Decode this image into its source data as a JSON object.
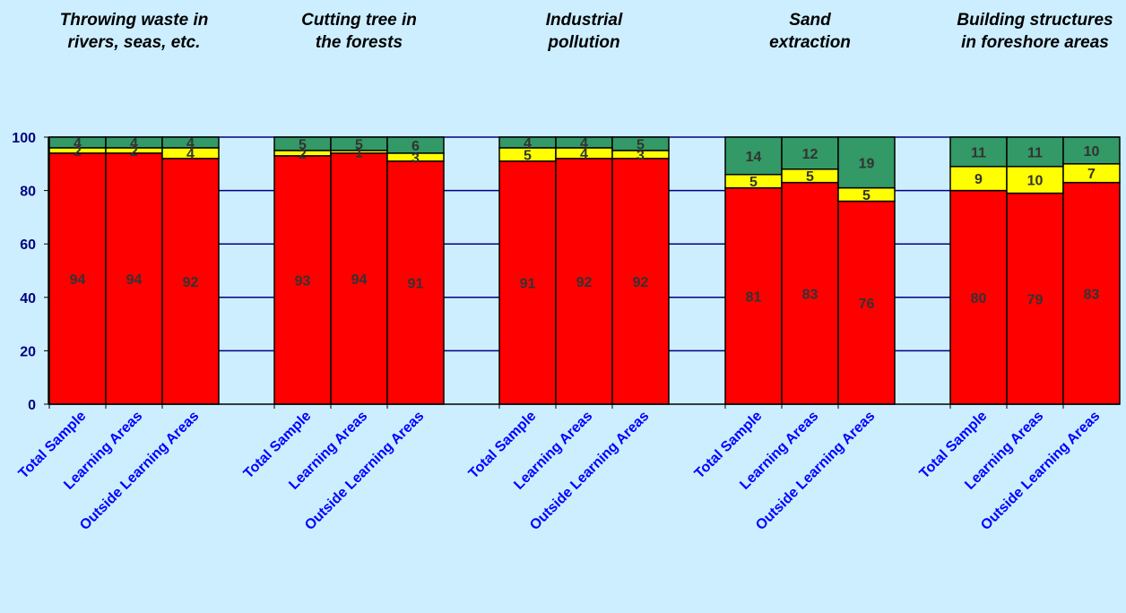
{
  "chart_data": {
    "type": "bar",
    "stacked": true,
    "ylim": [
      0,
      100
    ],
    "yticks": [
      0,
      20,
      40,
      60,
      80,
      100
    ],
    "grid": true,
    "categories": [
      "Total Sample",
      "Learning Areas",
      "Outside Learning Areas"
    ],
    "colors": {
      "red": "#ff0000",
      "yellow": "#ffff00",
      "green": "#339966",
      "background": "#cceeff",
      "grid": "#000080"
    },
    "groups": [
      {
        "title": [
          "Throwing waste in",
          "rivers, seas, etc."
        ],
        "bars": [
          {
            "segments": [
              94,
              2,
              4
            ]
          },
          {
            "segments": [
              94,
              2,
              4
            ]
          },
          {
            "segments": [
              92,
              4,
              4
            ]
          }
        ]
      },
      {
        "title": [
          "Cutting tree in",
          "the forests"
        ],
        "bars": [
          {
            "segments": [
              93,
              2,
              5
            ]
          },
          {
            "segments": [
              94,
              1,
              5
            ]
          },
          {
            "segments": [
              91,
              3,
              6
            ]
          }
        ]
      },
      {
        "title": [
          "Industrial",
          "pollution"
        ],
        "bars": [
          {
            "segments": [
              91,
              5,
              4
            ]
          },
          {
            "segments": [
              92,
              4,
              4
            ]
          },
          {
            "segments": [
              92,
              3,
              5
            ]
          }
        ]
      },
      {
        "title": [
          "Sand",
          "extraction"
        ],
        "bars": [
          {
            "segments": [
              81,
              5,
              14
            ]
          },
          {
            "segments": [
              83,
              5,
              12
            ]
          },
          {
            "segments": [
              76,
              5,
              19
            ]
          }
        ]
      },
      {
        "title": [
          "Building structures",
          "in foreshore areas"
        ],
        "bars": [
          {
            "segments": [
              80,
              9,
              11
            ]
          },
          {
            "segments": [
              79,
              10,
              11
            ]
          },
          {
            "segments": [
              83,
              7,
              10
            ]
          }
        ]
      }
    ]
  }
}
